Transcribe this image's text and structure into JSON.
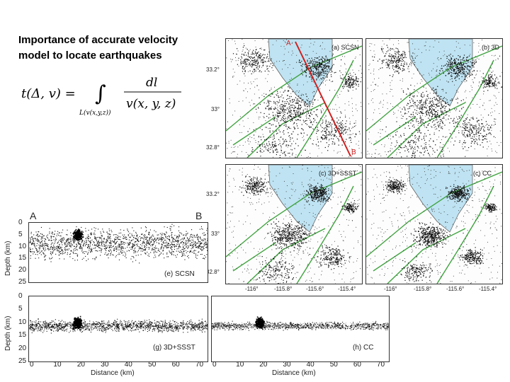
{
  "slide": {
    "title_line1": "Importance of accurate velocity",
    "title_line2": "model to locate earthquakes"
  },
  "formula": {
    "lhs": "t(Δ, v) =",
    "integral": "∫",
    "lower_limit": "L(v(x,y,z))",
    "numerator": "dl",
    "denominator": "v(x, y, z)"
  },
  "maps": {
    "panels": [
      {
        "label": "(a) SCSN"
      },
      {
        "label": "(b) 3D"
      },
      {
        "label": "(c) 3D+SSST"
      },
      {
        "label": "(c) CC"
      }
    ],
    "lat_ticks": [
      "33.2°",
      "33°",
      "32.8°"
    ],
    "lon_ticks": [
      "-116°",
      "-115.8°",
      "-115.6°",
      "-115.4°"
    ],
    "profile_start": "A",
    "profile_end": "B"
  },
  "sections": {
    "corner_start": "A",
    "corner_end": "B",
    "depth_label": "Depth (km)",
    "distance_label": "Distance (km)",
    "depth_ticks": [
      "0",
      "5",
      "10",
      "15",
      "20",
      "25"
    ],
    "distance_ticks": [
      "0",
      "10",
      "20",
      "30",
      "40",
      "50",
      "60",
      "70"
    ],
    "panels": [
      {
        "label": "(e) SCSN"
      },
      {
        "label": "(g) 3D+SSST"
      },
      {
        "label": "(h) CC"
      }
    ]
  }
}
